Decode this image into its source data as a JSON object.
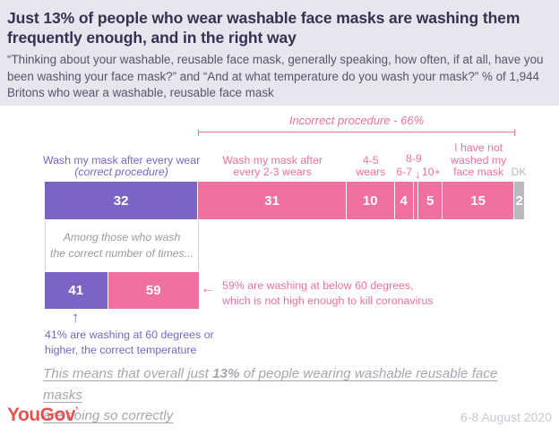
{
  "header": {
    "title": "Just 13% of people who wear washable face masks are washing them frequently enough, and in the right way",
    "subtitle": "“Thinking about your washable, reusable face mask, generally speaking, how often, if at all, have you been washing your face mask?” and “And at what temperature do you wash your mask?” % of 1,944 Britons who wear a washable, reusable face mask"
  },
  "icons": {
    "left_arrow": "←",
    "up_arrow": "↑",
    "down_arrow": "↓"
  },
  "colors": {
    "purple": "#7b64c6",
    "pink": "#f0709f",
    "grey": "#b9b8bd",
    "header_bg": "#e8e5ee",
    "yougov_red": "#e9514e"
  },
  "chart_data": {
    "type": "bar",
    "layout": "horizontal-stacked",
    "units": "% of 1,944 Britons who wear a washable, reusable face mask",
    "bracket": {
      "label": "Incorrect procedure - 66%",
      "total_pct": 66,
      "spans": [
        "Wash my mask after every 2-3 wears",
        "4-5 wears",
        "6-7",
        "8-9",
        "10+",
        "I have not washed my face mask"
      ]
    },
    "main_bar": {
      "segments": [
        {
          "category": "Wash my mask after every wear (correct procedure)",
          "label_line1": "Wash my mask after every wear",
          "label_line2": "(correct procedure)",
          "value": 32,
          "value_label": "32",
          "pct": 32,
          "color": "#7b64c6"
        },
        {
          "category": "Wash my mask after every 2-3 wears",
          "label_line1": "Wash my mask after",
          "label_line2": "every 2-3 wears",
          "value": 31,
          "value_label": "31",
          "pct": 31,
          "color": "#f0709f"
        },
        {
          "category": "4-5 wears",
          "label_line1": "4-5",
          "label_line2": "wears",
          "value": 10,
          "value_label": "10",
          "pct": 10,
          "color": "#f0709f"
        },
        {
          "category": "6-7",
          "label_line1": "6-7",
          "value": 4,
          "value_label": "4",
          "pct": 4,
          "color": "#f0709f"
        },
        {
          "category": "8-9",
          "label_line1": "8-9",
          "value": 1,
          "value_label": "",
          "pct": 1,
          "color": "#f0709f"
        },
        {
          "category": "10+",
          "label_line1": "10+",
          "value": 5,
          "value_label": "5",
          "pct": 5,
          "color": "#f0709f"
        },
        {
          "category": "I have not washed my face mask",
          "label_line1": "I have not",
          "label_line2": "washed my",
          "label_line3": "face mask",
          "value": 15,
          "value_label": "15",
          "pct": 15,
          "color": "#f0709f"
        },
        {
          "category": "DK",
          "label_line1": "DK",
          "value": 2,
          "value_label": "2",
          "pct": 2,
          "color": "#b9b8bd"
        }
      ]
    },
    "sub_bar": {
      "caption_line1": "Among those who wash",
      "caption_line2": "the correct number of times...",
      "segments": [
        {
          "category": "washing at 60 degrees or higher (correct temperature)",
          "value": 41,
          "value_label": "41",
          "pct": 41,
          "color": "#7b64c6"
        },
        {
          "category": "washing at below 60 degrees",
          "value": 59,
          "value_label": "59",
          "pct": 59,
          "color": "#f0709f"
        }
      ]
    },
    "annotations": {
      "pink_line1": "59% are washing at below 60 degrees,",
      "pink_line2": "which is not high enough to kill coronavirus",
      "purple_line1": "41% are washing at 60 degrees or",
      "purple_line2": "higher, the correct temperature"
    }
  },
  "conclusion": {
    "prefix": "This means that overall just ",
    "bold": "13%",
    "middle": " of people wearing washable reusable face masks",
    "line2": "are doing so correctly"
  },
  "footer": {
    "logo": "YouGov",
    "logo_mark": "’",
    "date": "6-8 August 2020"
  }
}
